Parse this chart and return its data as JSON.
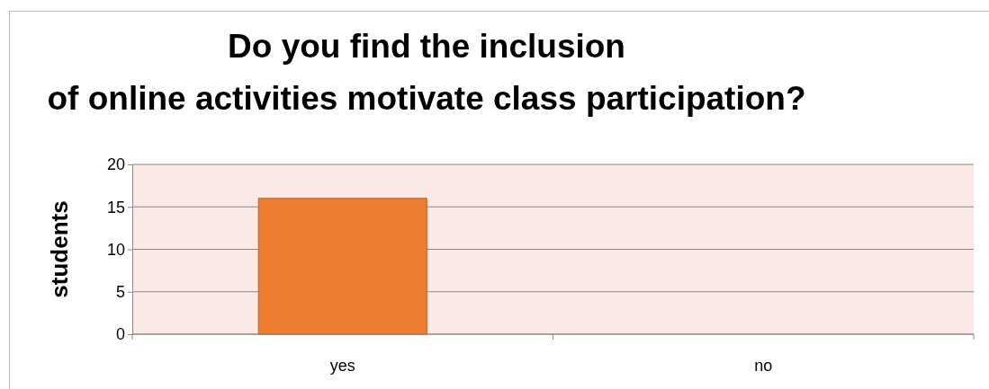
{
  "chart_data": {
    "type": "bar",
    "title": "Do you find the inclusion of online activities motivate class participation?",
    "ylabel": "students",
    "categories": [
      "yes",
      "no"
    ],
    "values": [
      16,
      0
    ],
    "color": "#ed7d31",
    "ylim": [
      0,
      20
    ],
    "yticks": [
      0,
      5,
      10,
      15,
      20
    ],
    "grid": "y"
  }
}
